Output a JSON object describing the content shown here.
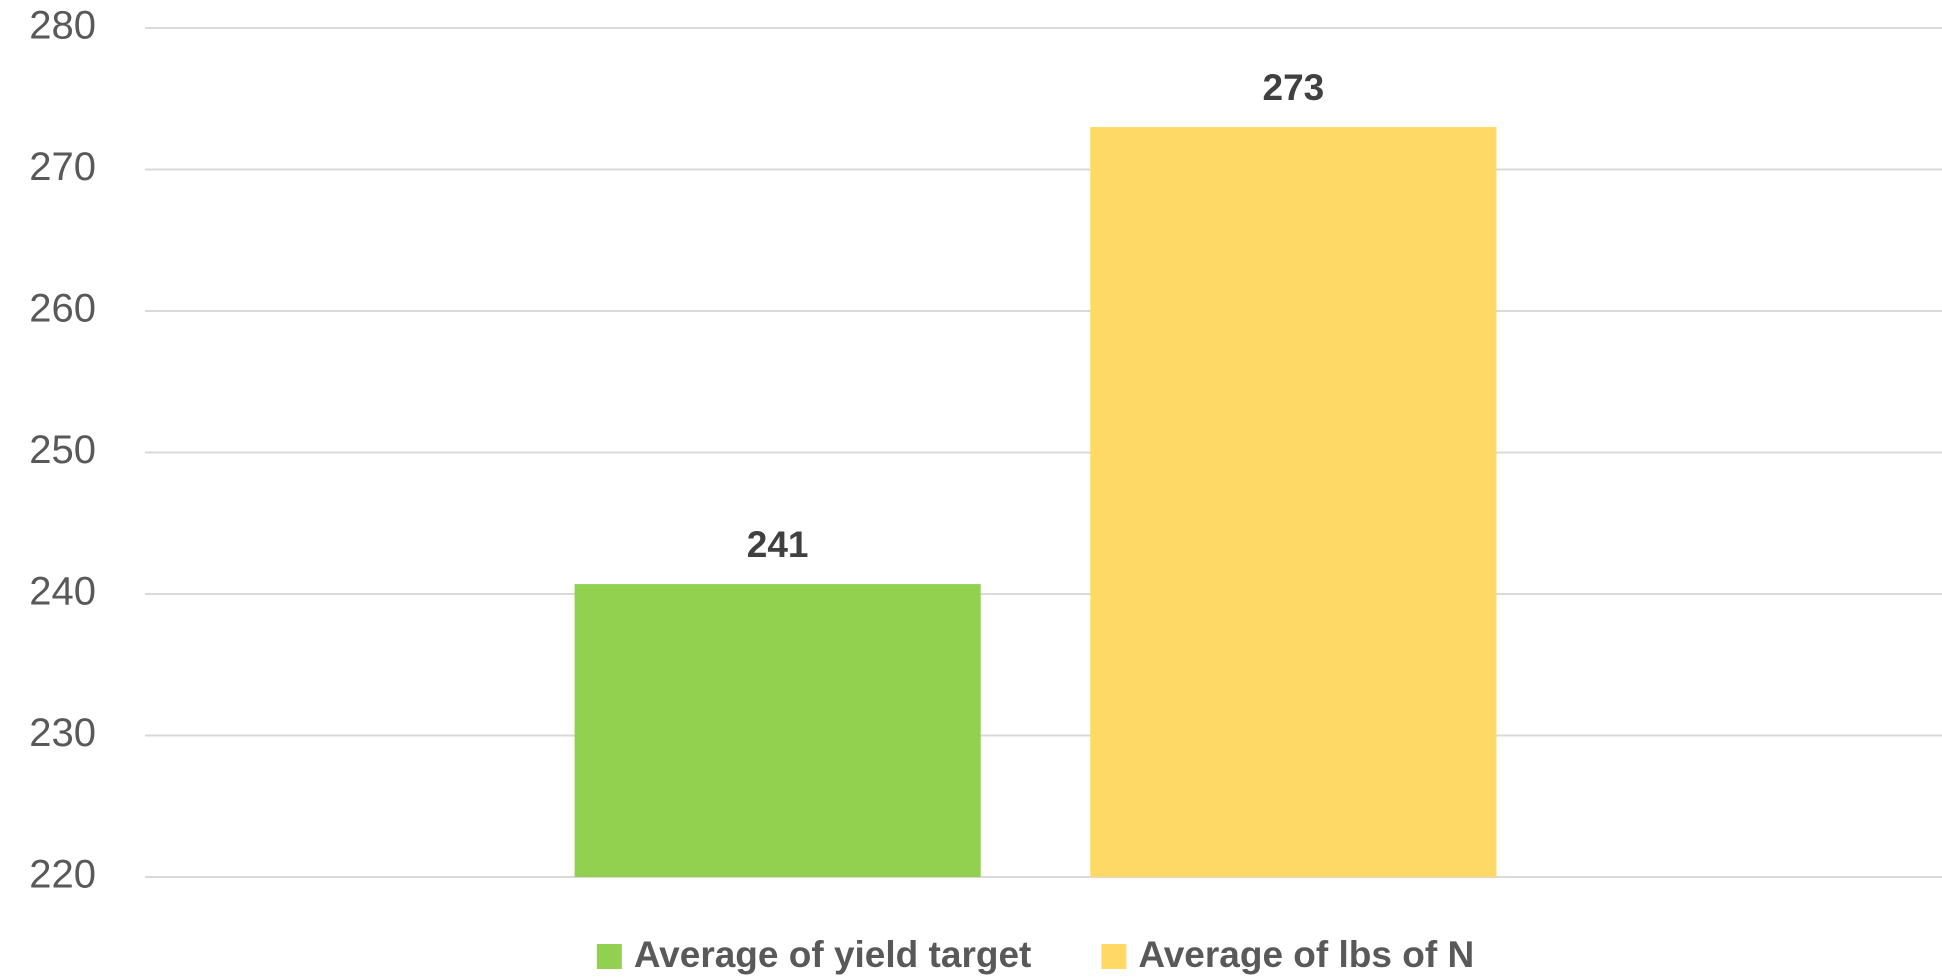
{
  "chart_data": {
    "type": "bar",
    "categories": [
      null
    ],
    "series": [
      {
        "name": "Average of yield target",
        "color": "#92d050",
        "values": [
          240.7
        ],
        "value_labels": [
          "241"
        ]
      },
      {
        "name": "Average of lbs of N",
        "color": "#ffd966",
        "values": [
          273
        ],
        "value_labels": [
          "273"
        ]
      }
    ],
    "ylim": [
      220,
      280
    ],
    "yticks": [
      220,
      230,
      240,
      250,
      260,
      270,
      280
    ],
    "grid": true,
    "legend": "bottom"
  }
}
